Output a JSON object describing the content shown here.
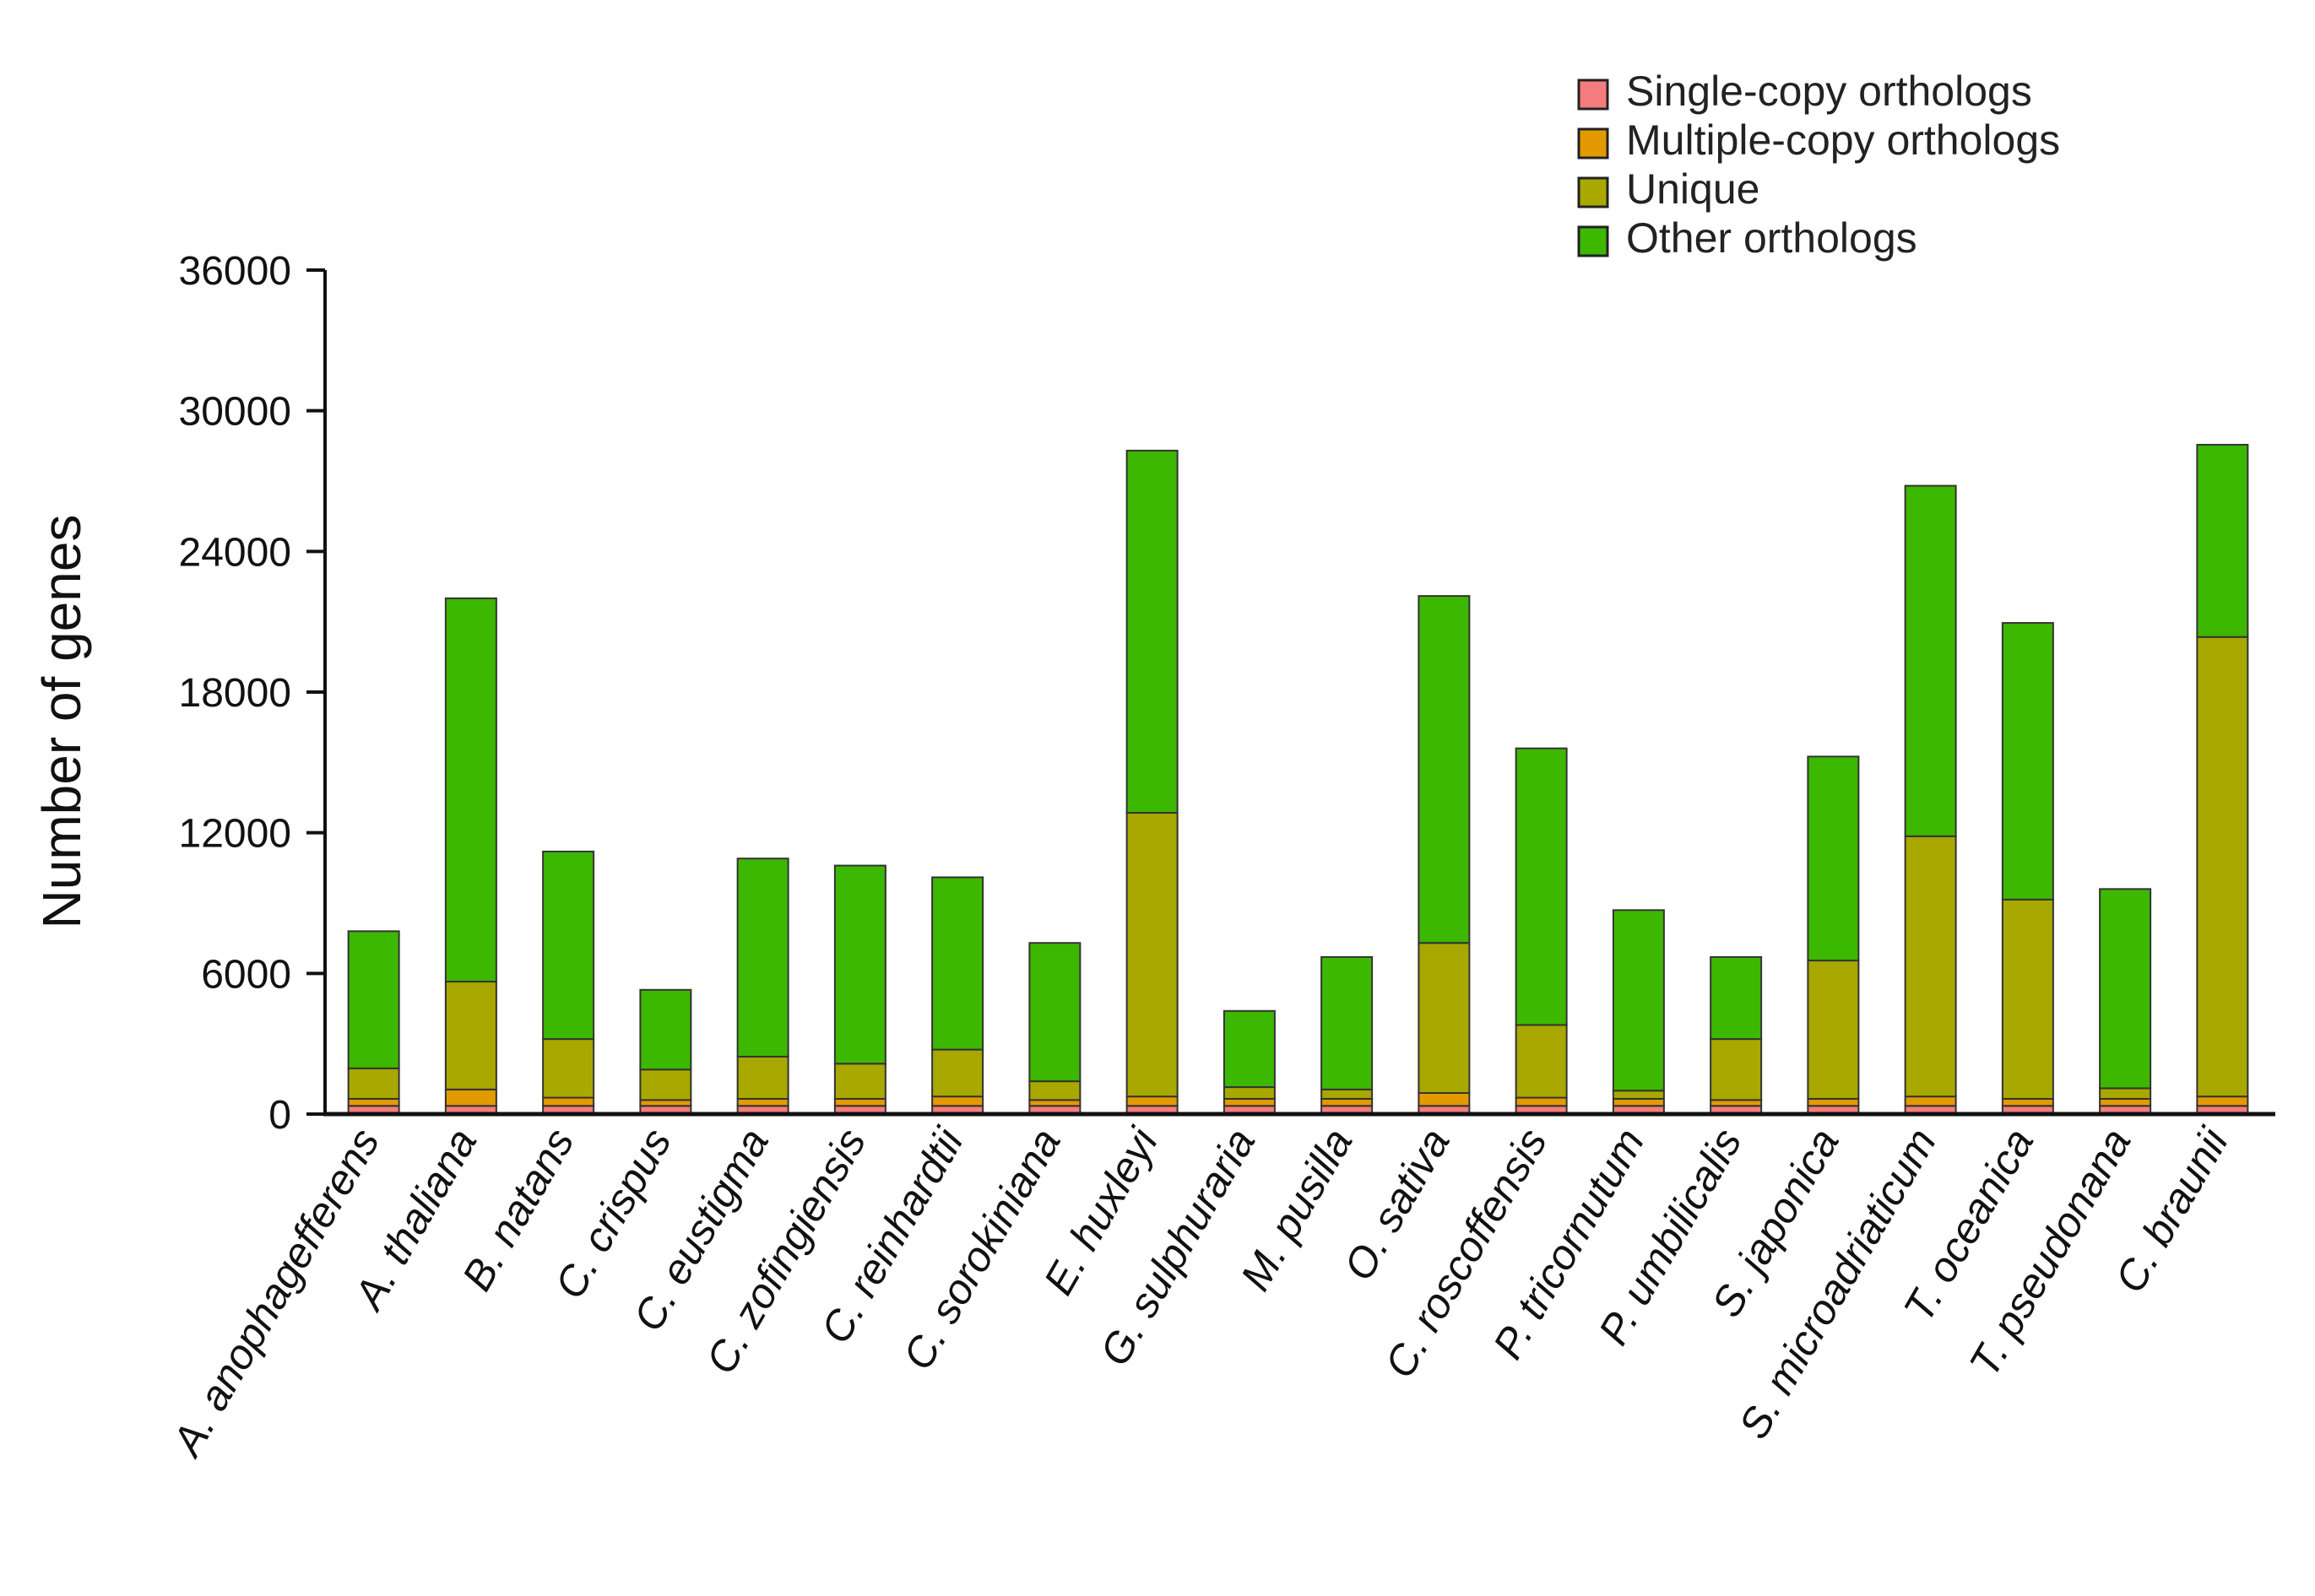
{
  "chart_data": {
    "type": "bar",
    "stacked": true,
    "title": "",
    "xlabel": "",
    "ylabel": "Number of genes",
    "ylim": [
      0,
      36000
    ],
    "yticks": [
      0,
      6000,
      12000,
      18000,
      24000,
      30000,
      36000
    ],
    "ytick_labels": [
      "0",
      "6000",
      "12000",
      "18000",
      "24000",
      "30000",
      "36000"
    ],
    "legend_position": "top-right",
    "categories": [
      "A. anophagefferens",
      "A. thaliana",
      "B. natans",
      "C. crispus",
      "C. eustigma",
      "C. zofingiensis",
      "C. reinhardtii",
      "C. sorokiniana",
      "E. huxleyi",
      "G. sulphuraria",
      "M. pusilla",
      "O. sativa",
      "C. roscoffensis",
      "P. tricornutum",
      "P. umbilicalis",
      "S. japonica",
      "S. microadriaticum",
      "T. oceanica",
      "T. pseudonana",
      "C. braunii"
    ],
    "series": [
      {
        "name": "Single-copy orthologs",
        "color": "#f47c7c",
        "values": [
          350,
          350,
          350,
          350,
          350,
          350,
          350,
          350,
          350,
          350,
          350,
          350,
          350,
          350,
          350,
          350,
          350,
          350,
          350,
          350
        ]
      },
      {
        "name": "Multiple-copy orthologs",
        "color": "#e39a00",
        "values": [
          300,
          700,
          350,
          250,
          300,
          300,
          400,
          250,
          400,
          300,
          300,
          550,
          350,
          300,
          250,
          300,
          400,
          300,
          300,
          400
        ]
      },
      {
        "name": "Unique",
        "color": "#a8a800",
        "values": [
          1300,
          4600,
          2500,
          1300,
          1800,
          1500,
          2000,
          800,
          12100,
          500,
          400,
          6400,
          3100,
          350,
          2600,
          5900,
          11100,
          8500,
          450,
          19600
        ]
      },
      {
        "name": "Other orthologs",
        "color": "#3cb800",
        "values": [
          5850,
          16350,
          8000,
          3400,
          8450,
          8450,
          7350,
          5900,
          15450,
          3250,
          5650,
          14800,
          11800,
          7700,
          3500,
          8700,
          14950,
          11800,
          8500,
          8200
        ]
      }
    ]
  }
}
